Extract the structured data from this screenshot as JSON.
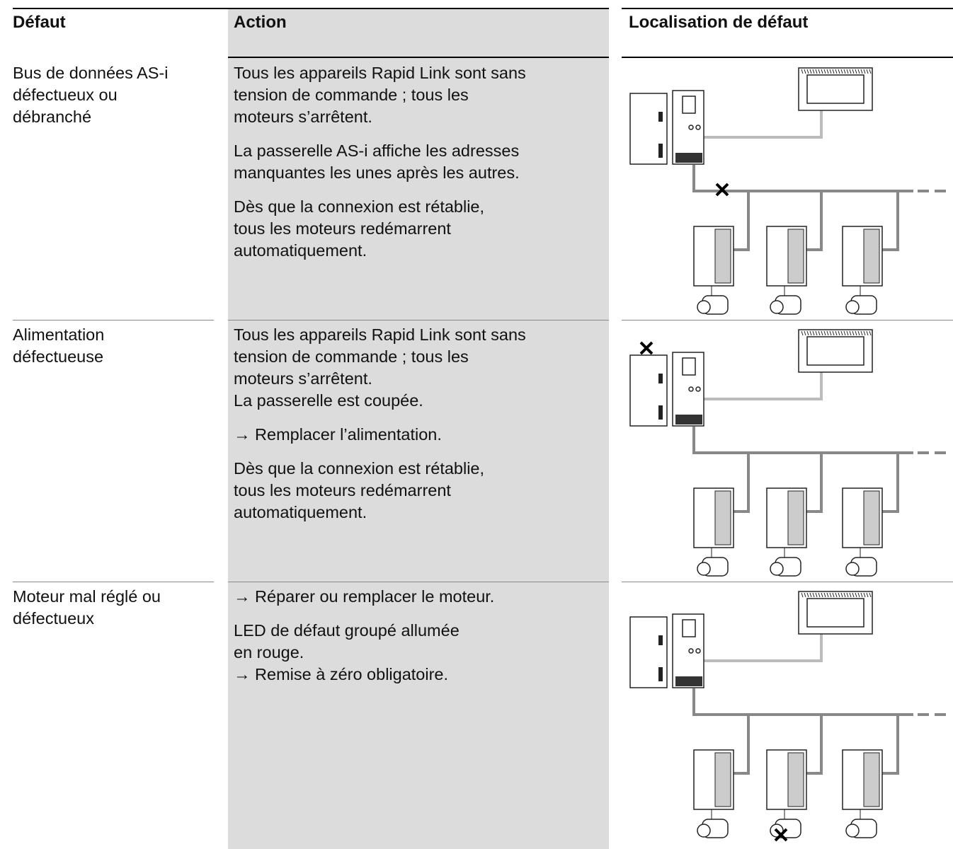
{
  "header": {
    "columns": [
      "Défaut",
      "Action",
      "Localisation de défaut"
    ]
  },
  "rows": [
    {
      "fault": [
        "Bus de données AS-i",
        "défectueux ou",
        "débranché"
      ],
      "action": [
        [
          "Tous les appareils Rapid Link sont sans",
          "tension de commande ; tous les",
          "moteurs s’arrêtent."
        ],
        [
          "La passerelle AS-i affiche les adresses",
          "manquantes les unes après les autres."
        ],
        [
          "Dès que la connexion est rétablie,",
          "tous les moteurs redémarrent",
          "automatiquement."
        ]
      ]
    },
    {
      "fault": [
        "Alimentation",
        "défectueuse"
      ],
      "action": [
        [
          "Tous les appareils Rapid Link sont sans",
          "tension de commande ; tous les",
          "moteurs s’arrêtent.",
          "La passerelle est coupée."
        ],
        [
          "→ Remplacer l’alimentation."
        ],
        [
          "Dès que la connexion est rétablie,",
          "tous les moteurs redémarrent",
          "automatiquement."
        ]
      ]
    },
    {
      "fault": [
        "Moteur mal réglé ou",
        "défectueux"
      ],
      "action": [
        [
          "→ Réparer ou remplacer le moteur."
        ],
        [
          "LED de défaut groupé allumée",
          "en rouge.",
          "→ Remise à zéro obligatoire."
        ]
      ]
    }
  ]
}
